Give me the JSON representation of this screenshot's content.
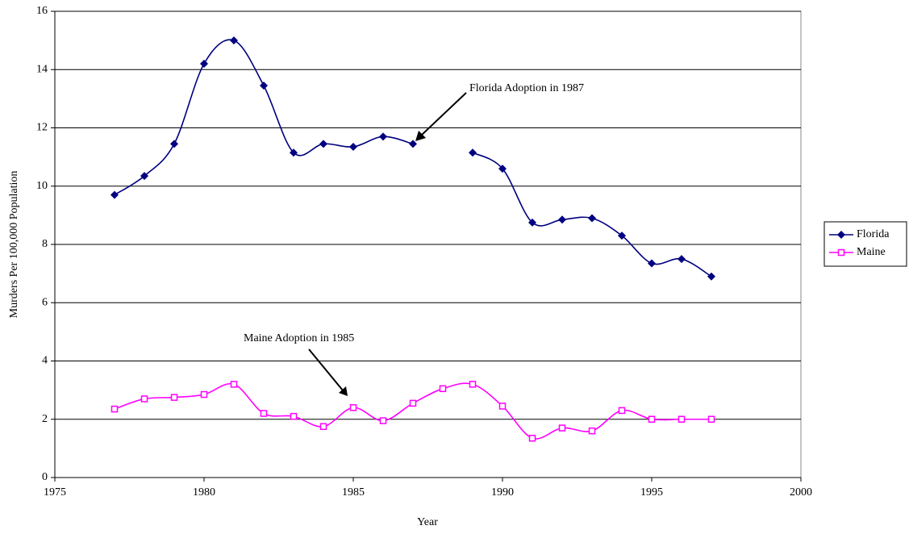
{
  "chart_data": {
    "type": "line",
    "x_label": "Year",
    "y_label": "Murders Per 100,000 Population",
    "x": [
      1977,
      1978,
      1979,
      1980,
      1981,
      1982,
      1983,
      1984,
      1985,
      1986,
      1987,
      1988,
      1989,
      1990,
      1991,
      1992,
      1993,
      1994,
      1995,
      1996,
      1997
    ],
    "series": [
      {
        "name": "Florida",
        "color": "#000080",
        "marker": "diamond",
        "values": [
          9.7,
          10.35,
          11.45,
          14.2,
          15.0,
          13.45,
          11.15,
          11.45,
          11.35,
          11.7,
          11.45,
          null,
          11.15,
          10.6,
          8.75,
          8.85,
          8.9,
          8.3,
          7.35,
          7.5,
          6.9
        ]
      },
      {
        "name": "Maine",
        "color": "#ff00ff",
        "marker": "square",
        "values": [
          2.35,
          2.7,
          2.75,
          2.85,
          3.2,
          2.2,
          2.1,
          1.75,
          2.4,
          1.95,
          2.55,
          3.05,
          3.2,
          2.45,
          1.35,
          1.7,
          1.6,
          2.3,
          2.0,
          2.0,
          2.0
        ]
      }
    ],
    "annotations": [
      "Florida Adoption in 1987",
      "Maine Adoption in 1985"
    ],
    "xlim": [
      1975,
      2000
    ],
    "xticks": [
      1975,
      1980,
      1985,
      1990,
      1995,
      2000
    ],
    "ylim": [
      0,
      16
    ],
    "yticks": [
      0,
      2,
      4,
      6,
      8,
      10,
      12,
      14,
      16
    ],
    "grid": true,
    "smooth": true,
    "legend": "right"
  }
}
